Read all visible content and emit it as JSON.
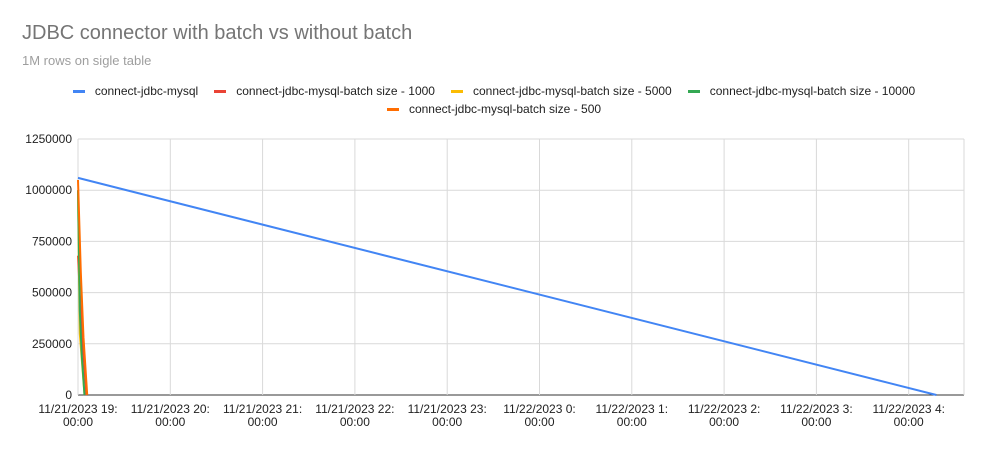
{
  "chart_data": {
    "type": "line",
    "title": "JDBC connector with batch vs without batch",
    "subtitle": "1M rows on sigle table",
    "x_ticks": [
      [
        "11/21/2023 19:",
        "00:00"
      ],
      [
        "11/21/2023 20:",
        "00:00"
      ],
      [
        "11/21/2023 21:",
        "00:00"
      ],
      [
        "11/21/2023 22:",
        "00:00"
      ],
      [
        "11/21/2023 23:",
        "00:00"
      ],
      [
        "11/22/2023 0:",
        "00:00"
      ],
      [
        "11/22/2023 1:",
        "00:00"
      ],
      [
        "11/22/2023 2:",
        "00:00"
      ],
      [
        "11/22/2023 3:",
        "00:00"
      ],
      [
        "11/22/2023 4:",
        "00:00"
      ]
    ],
    "y_ticks": [
      "0",
      "250000",
      "500000",
      "750000",
      "1000000",
      "1250000"
    ],
    "ylim": [
      0,
      1250000
    ],
    "x_unit": "hours since 11/21/2023 19:00",
    "xlim": [
      0,
      9.3
    ],
    "grid": true,
    "legend_position": "top",
    "series": [
      {
        "name": "connect-jdbc-mysql",
        "color": "#4285f4",
        "points": [
          [
            0,
            1060000
          ],
          [
            9.3,
            0
          ]
        ]
      },
      {
        "name": "connect-jdbc-mysql-batch size - 1000",
        "color": "#ea4335",
        "points": [
          [
            0,
            680000
          ],
          [
            0.03,
            400000
          ],
          [
            0.06,
            200000
          ],
          [
            0.09,
            0
          ]
        ]
      },
      {
        "name": "connect-jdbc-mysql-batch size - 5000",
        "color": "#fbbc04",
        "points": [
          [
            0,
            1000000
          ],
          [
            0.02,
            300000
          ],
          [
            0.07,
            0
          ]
        ]
      },
      {
        "name": "connect-jdbc-mysql-batch size - 10000",
        "color": "#34a853",
        "points": [
          [
            0,
            1000000
          ],
          [
            0.02,
            410000
          ],
          [
            0.04,
            200000
          ],
          [
            0.07,
            0
          ]
        ]
      },
      {
        "name": "connect-jdbc-mysql-batch size - 500",
        "color": "#ff6d01",
        "points": [
          [
            0,
            1050000
          ],
          [
            0.03,
            600000
          ],
          [
            0.06,
            280000
          ],
          [
            0.1,
            0
          ]
        ]
      }
    ]
  }
}
